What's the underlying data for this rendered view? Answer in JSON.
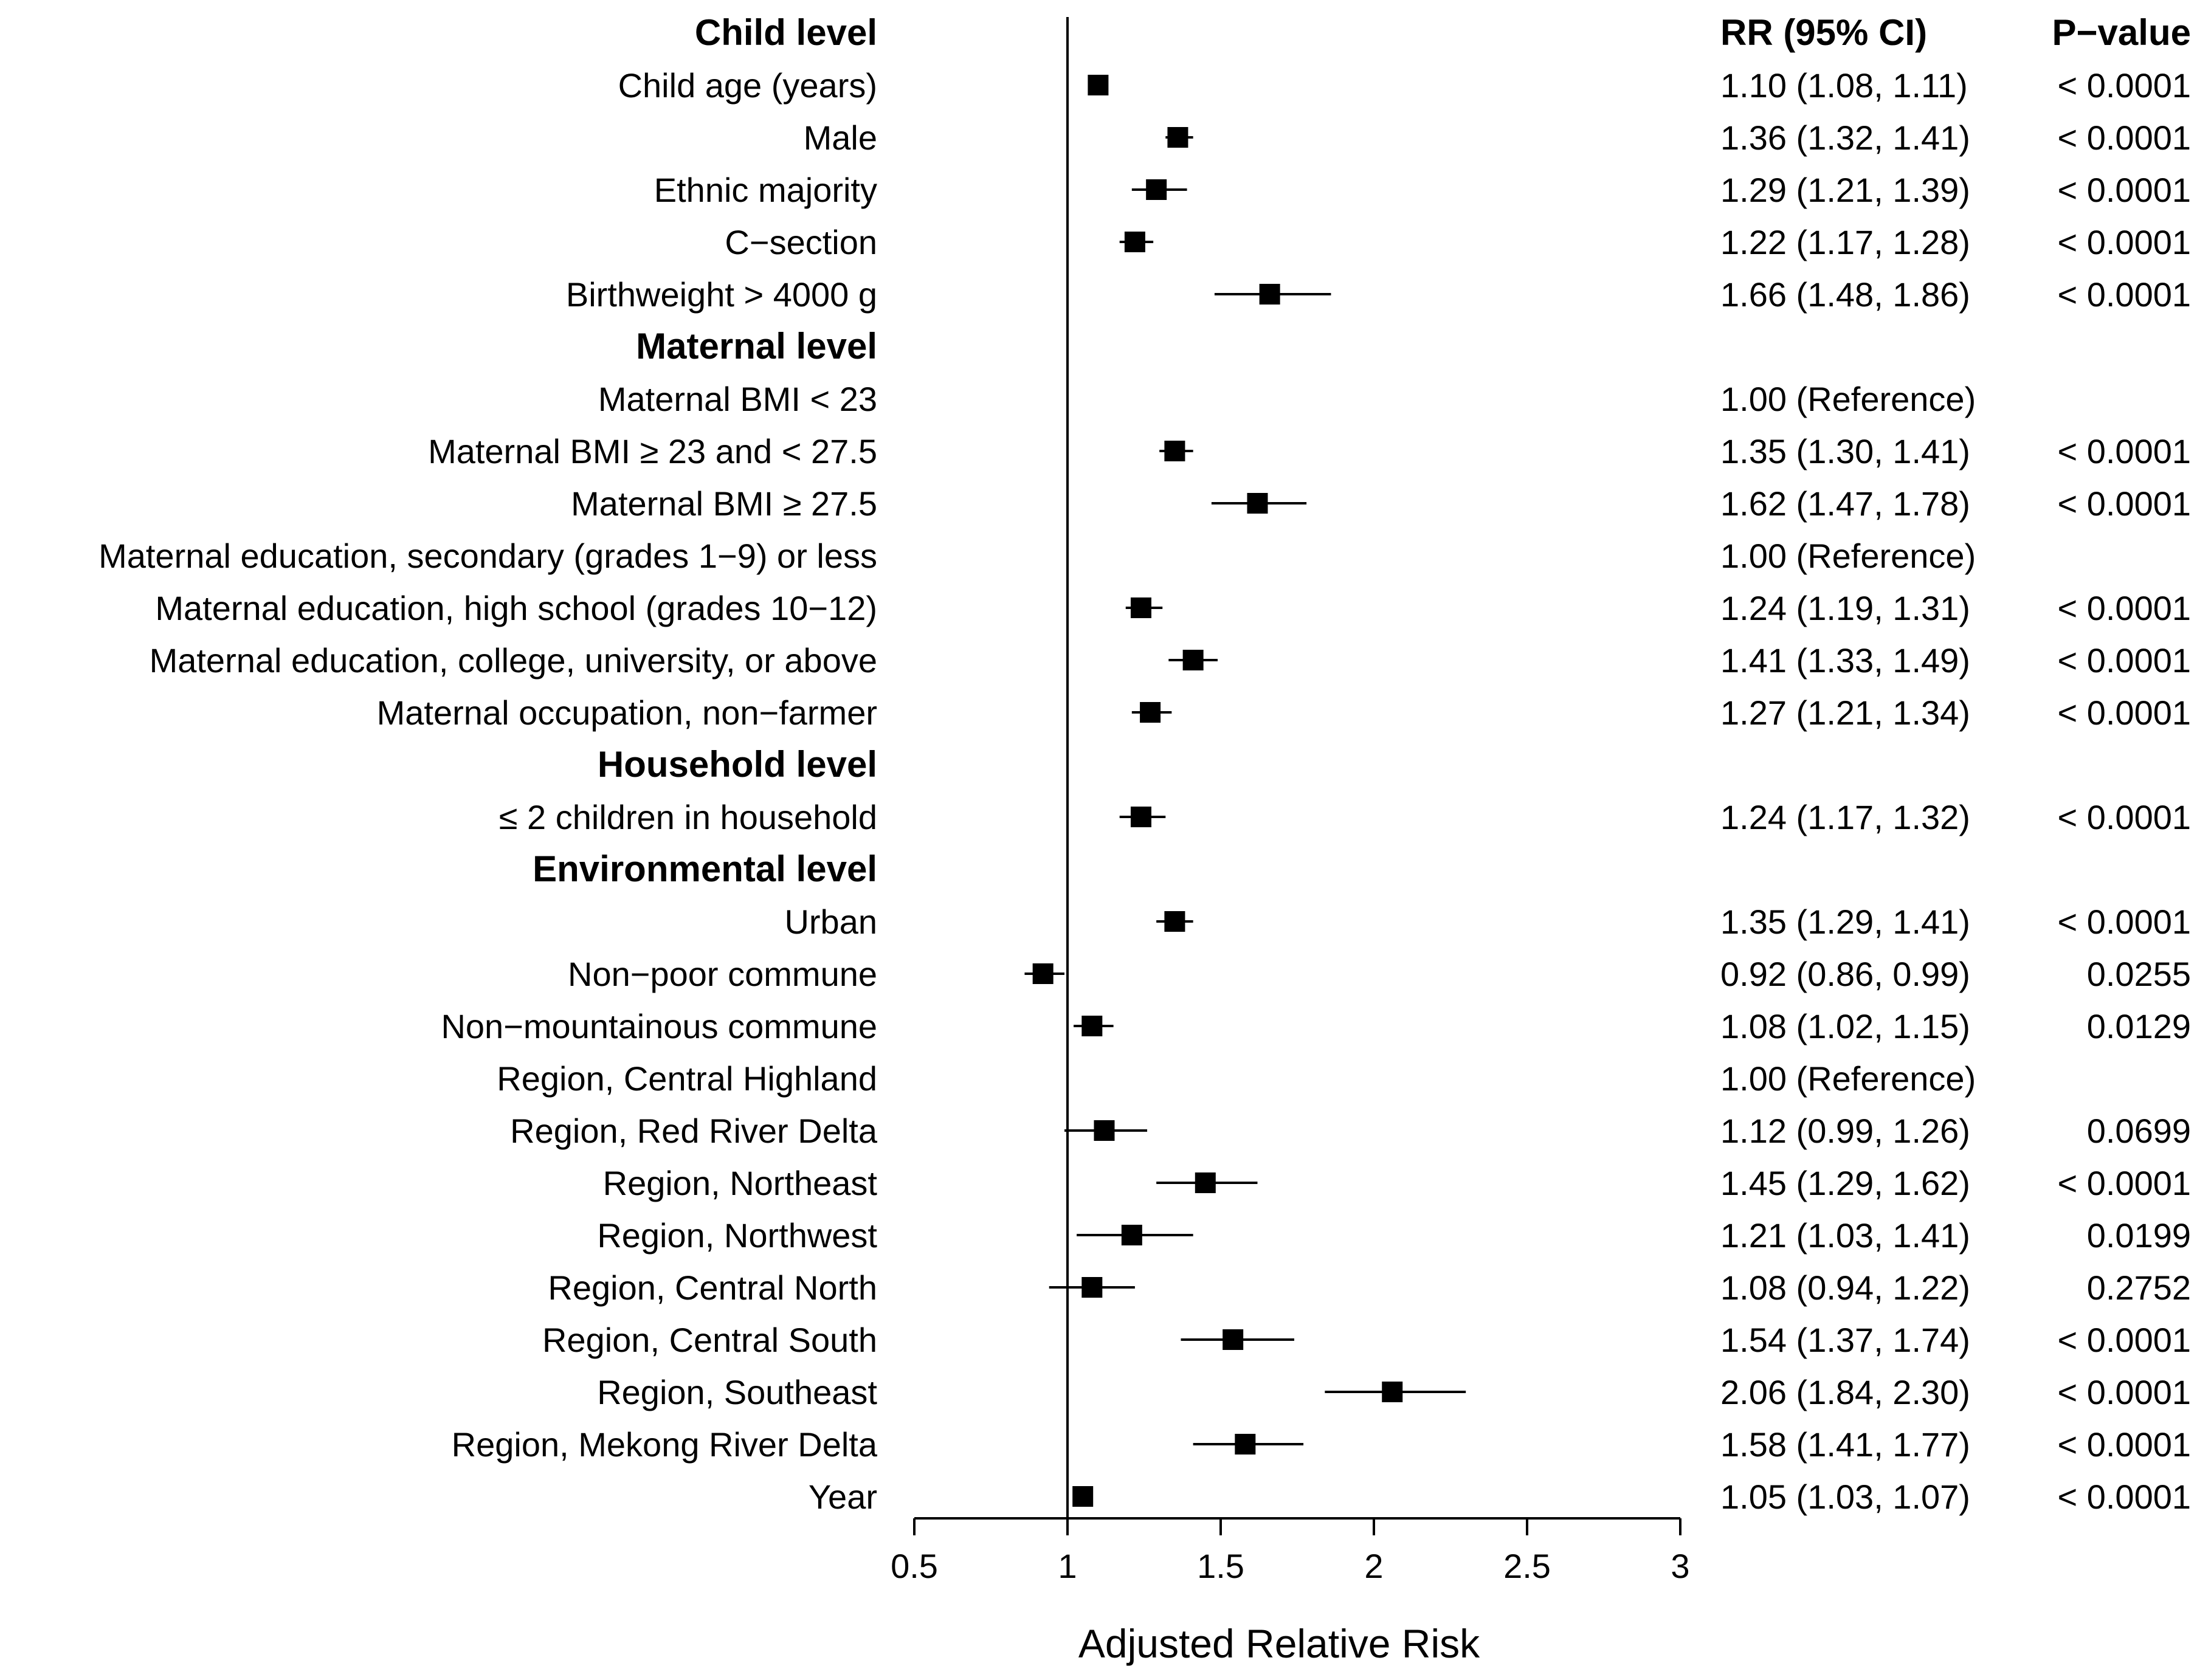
{
  "chart_data": {
    "type": "forest",
    "xlabel": "Adjusted Relative Risk",
    "xlim": [
      0.5,
      3
    ],
    "xticks": [
      0.5,
      1,
      1.5,
      2,
      2.5,
      3
    ],
    "xtick_labels": [
      "0.5",
      "1",
      "1.5",
      "2",
      "2.5",
      "3"
    ],
    "reference_line": 1,
    "column_headers": {
      "rr": "RR (95% CI)",
      "p": "P−value"
    },
    "rows": [
      {
        "kind": "header",
        "label": "Child level"
      },
      {
        "kind": "item",
        "label": "Child age (years)",
        "rr": 1.1,
        "lo": 1.08,
        "hi": 1.11,
        "rr_text": "1.10 (1.08, 1.11)",
        "p_text": "< 0.0001"
      },
      {
        "kind": "item",
        "label": "Male",
        "rr": 1.36,
        "lo": 1.32,
        "hi": 1.41,
        "rr_text": "1.36 (1.32, 1.41)",
        "p_text": "< 0.0001"
      },
      {
        "kind": "item",
        "label": "Ethnic majority",
        "rr": 1.29,
        "lo": 1.21,
        "hi": 1.39,
        "rr_text": "1.29 (1.21, 1.39)",
        "p_text": "< 0.0001"
      },
      {
        "kind": "item",
        "label": "C−section",
        "rr": 1.22,
        "lo": 1.17,
        "hi": 1.28,
        "rr_text": "1.22 (1.17, 1.28)",
        "p_text": "< 0.0001"
      },
      {
        "kind": "item",
        "label": "Birthweight > 4000 g",
        "rr": 1.66,
        "lo": 1.48,
        "hi": 1.86,
        "rr_text": "1.66 (1.48, 1.86)",
        "p_text": "< 0.0001"
      },
      {
        "kind": "header",
        "label": "Maternal level"
      },
      {
        "kind": "ref",
        "label": "Maternal BMI < 23",
        "rr_text": "1.00 (Reference)",
        "p_text": ""
      },
      {
        "kind": "item",
        "label": "Maternal BMI ≥ 23 and < 27.5",
        "rr": 1.35,
        "lo": 1.3,
        "hi": 1.41,
        "rr_text": "1.35 (1.30, 1.41)",
        "p_text": "< 0.0001"
      },
      {
        "kind": "item",
        "label": "Maternal BMI ≥ 27.5",
        "rr": 1.62,
        "lo": 1.47,
        "hi": 1.78,
        "rr_text": "1.62 (1.47, 1.78)",
        "p_text": "< 0.0001"
      },
      {
        "kind": "ref",
        "label": "Maternal education, secondary (grades 1−9) or less",
        "rr_text": "1.00 (Reference)",
        "p_text": ""
      },
      {
        "kind": "item",
        "label": "Maternal education, high school (grades 10−12)",
        "rr": 1.24,
        "lo": 1.19,
        "hi": 1.31,
        "rr_text": "1.24 (1.19, 1.31)",
        "p_text": "< 0.0001"
      },
      {
        "kind": "item",
        "label": "Maternal education, college, university, or above",
        "rr": 1.41,
        "lo": 1.33,
        "hi": 1.49,
        "rr_text": "1.41 (1.33, 1.49)",
        "p_text": "< 0.0001"
      },
      {
        "kind": "item",
        "label": "Maternal occupation, non−farmer",
        "rr": 1.27,
        "lo": 1.21,
        "hi": 1.34,
        "rr_text": "1.27 (1.21, 1.34)",
        "p_text": "< 0.0001"
      },
      {
        "kind": "header",
        "label": "Household level"
      },
      {
        "kind": "item",
        "label": "≤ 2 children in household",
        "rr": 1.24,
        "lo": 1.17,
        "hi": 1.32,
        "rr_text": "1.24 (1.17, 1.32)",
        "p_text": "< 0.0001"
      },
      {
        "kind": "header",
        "label": "Environmental level"
      },
      {
        "kind": "item",
        "label": "Urban",
        "rr": 1.35,
        "lo": 1.29,
        "hi": 1.41,
        "rr_text": "1.35 (1.29, 1.41)",
        "p_text": "< 0.0001"
      },
      {
        "kind": "item",
        "label": "Non−poor commune",
        "rr": 0.92,
        "lo": 0.86,
        "hi": 0.99,
        "rr_text": "0.92 (0.86, 0.99)",
        "p_text": "0.0255"
      },
      {
        "kind": "item",
        "label": "Non−mountainous commune",
        "rr": 1.08,
        "lo": 1.02,
        "hi": 1.15,
        "rr_text": "1.08 (1.02, 1.15)",
        "p_text": "0.0129"
      },
      {
        "kind": "ref",
        "label": "Region, Central Highland",
        "rr_text": "1.00 (Reference)",
        "p_text": ""
      },
      {
        "kind": "item",
        "label": "Region, Red River Delta",
        "rr": 1.12,
        "lo": 0.99,
        "hi": 1.26,
        "rr_text": "1.12 (0.99, 1.26)",
        "p_text": "0.0699"
      },
      {
        "kind": "item",
        "label": "Region, Northeast",
        "rr": 1.45,
        "lo": 1.29,
        "hi": 1.62,
        "rr_text": "1.45 (1.29, 1.62)",
        "p_text": "< 0.0001"
      },
      {
        "kind": "item",
        "label": "Region, Northwest",
        "rr": 1.21,
        "lo": 1.03,
        "hi": 1.41,
        "rr_text": "1.21 (1.03, 1.41)",
        "p_text": "0.0199"
      },
      {
        "kind": "item",
        "label": "Region, Central North",
        "rr": 1.08,
        "lo": 0.94,
        "hi": 1.22,
        "rr_text": "1.08 (0.94, 1.22)",
        "p_text": "0.2752"
      },
      {
        "kind": "item",
        "label": "Region, Central South",
        "rr": 1.54,
        "lo": 1.37,
        "hi": 1.74,
        "rr_text": "1.54 (1.37, 1.74)",
        "p_text": "< 0.0001"
      },
      {
        "kind": "item",
        "label": "Region, Southeast",
        "rr": 2.06,
        "lo": 1.84,
        "hi": 2.3,
        "rr_text": "2.06 (1.84, 2.30)",
        "p_text": "< 0.0001"
      },
      {
        "kind": "item",
        "label": "Region, Mekong River Delta",
        "rr": 1.58,
        "lo": 1.41,
        "hi": 1.77,
        "rr_text": "1.58 (1.41, 1.77)",
        "p_text": "< 0.0001"
      },
      {
        "kind": "item",
        "label": "Year",
        "rr": 1.05,
        "lo": 1.03,
        "hi": 1.07,
        "rr_text": "1.05 (1.03, 1.07)",
        "p_text": "< 0.0001"
      }
    ]
  }
}
